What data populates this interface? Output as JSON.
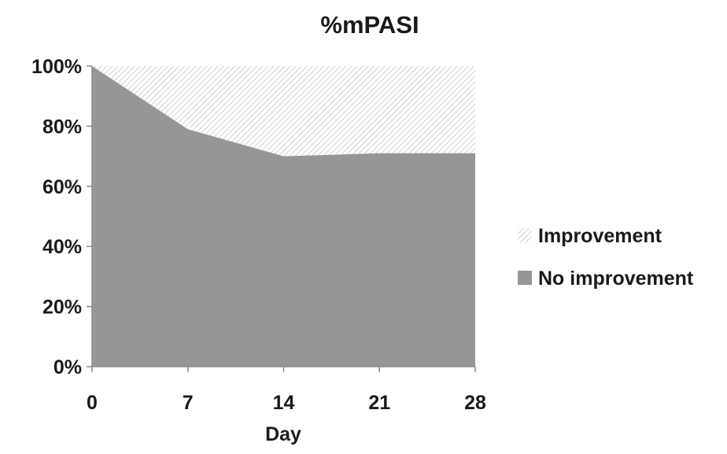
{
  "chart_data": {
    "type": "area",
    "title": "%mPASI",
    "xlabel": "Day",
    "ylabel": "",
    "x": [
      0,
      7,
      14,
      21,
      28
    ],
    "x_tick_labels": [
      "0",
      "7",
      "14",
      "21",
      "28"
    ],
    "ylim": [
      0,
      100
    ],
    "y_tick_labels": [
      "0%",
      "20%",
      "40%",
      "60%",
      "80%",
      "100%"
    ],
    "y_ticks": [
      0,
      20,
      40,
      60,
      80,
      100
    ],
    "stacked": true,
    "legend_position": "right",
    "series": [
      {
        "name": "No improvement",
        "values": [
          100,
          79,
          70,
          71,
          71
        ],
        "color": "#969696"
      },
      {
        "name": "Improvement",
        "values": [
          0,
          21,
          30,
          29,
          29
        ],
        "color": "#d9d9d9",
        "pattern": "diagonal-hatch"
      }
    ]
  }
}
